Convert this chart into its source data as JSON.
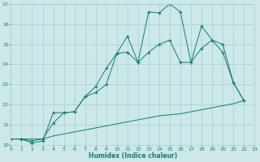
{
  "line1_x": [
    0,
    1,
    2,
    3,
    4,
    5,
    6,
    7,
    8,
    9,
    10,
    11,
    12,
    13,
    14,
    15,
    16,
    17,
    18,
    19,
    20,
    21,
    22
  ],
  "line1_y": [
    10.3,
    10.3,
    10.1,
    10.2,
    11.6,
    11.6,
    11.65,
    12.4,
    12.9,
    13.8,
    14.55,
    15.4,
    14.1,
    16.6,
    16.55,
    17.0,
    16.6,
    14.1,
    15.9,
    15.2,
    14.6,
    13.1,
    12.2
  ],
  "line2_x": [
    0,
    1,
    2,
    3,
    4,
    5,
    6,
    7,
    8,
    9,
    10,
    11,
    12,
    13,
    14,
    15,
    16,
    17,
    18,
    19,
    20,
    21,
    22
  ],
  "line2_y": [
    10.3,
    10.3,
    10.2,
    10.3,
    11.1,
    11.6,
    11.65,
    12.4,
    12.6,
    13.0,
    14.55,
    14.6,
    14.1,
    14.6,
    15.0,
    15.2,
    14.1,
    14.1,
    14.8,
    15.2,
    15.0,
    13.1,
    12.2
  ],
  "line3_x": [
    0,
    1,
    2,
    3,
    4,
    5,
    6,
    7,
    8,
    9,
    10,
    11,
    12,
    13,
    14,
    15,
    16,
    17,
    18,
    19,
    20,
    21,
    22
  ],
  "line3_y": [
    10.3,
    10.3,
    10.3,
    10.3,
    10.45,
    10.55,
    10.65,
    10.75,
    10.85,
    10.95,
    11.05,
    11.15,
    11.25,
    11.35,
    11.45,
    11.5,
    11.55,
    11.65,
    11.75,
    11.85,
    11.95,
    12.05,
    12.2
  ],
  "line_color": "#1a7a6a",
  "bg_color": "#cce8e8",
  "grid_color": "#aacfcf",
  "xlabel": "Humidex (Indice chaleur)",
  "ylim": [
    10,
    17
  ],
  "xlim": [
    0,
    23
  ],
  "yticks": [
    10,
    11,
    12,
    13,
    14,
    15,
    16,
    17
  ],
  "xticks": [
    0,
    1,
    2,
    3,
    4,
    5,
    6,
    7,
    8,
    9,
    10,
    11,
    12,
    13,
    14,
    15,
    16,
    17,
    18,
    19,
    20,
    21,
    22,
    23
  ]
}
